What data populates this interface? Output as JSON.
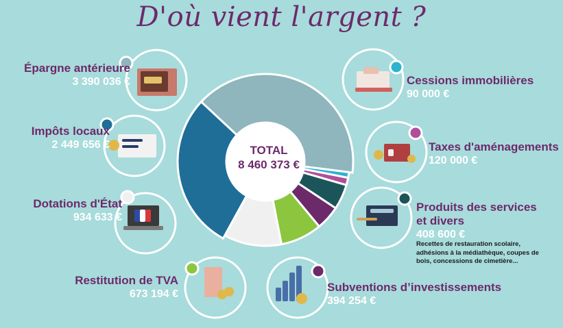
{
  "title": "D'où vient l'argent ?",
  "total": {
    "label": "TOTAL",
    "value": "8 460 373 €"
  },
  "items": [
    {
      "label": "Épargne antérieure",
      "value": "3 390 036 €",
      "icon": "safe-icon",
      "dot_color": "#8fb5bd"
    },
    {
      "label": "Impôts locaux",
      "value": "2 449 656 €",
      "icon": "tax-documents-icon",
      "dot_color": "#1e6e98"
    },
    {
      "label": "Dotations d'État",
      "value": "934 633 €",
      "icon": "laptop-flag-icon",
      "dot_color": "#f0f0f0"
    },
    {
      "label": "Restitution de TVA",
      "value": "673 194 €",
      "icon": "receipt-coins-icon",
      "dot_color": "#8cc63f"
    },
    {
      "label": "Subventions d’investissements",
      "value": "394 254 €",
      "icon": "growth-chart-icon",
      "dot_color": "#6c2a6b"
    },
    {
      "label": "Produits des services",
      "label2": "et divers",
      "value": "408 600 €",
      "icon": "calculator-icon",
      "dot_color": "#1c5559",
      "note": "Recettes de restauration scolaire, adhésions à la médiathèque, coupes de bois, concessions de cimetière..."
    },
    {
      "label": "Taxes d'aménagements",
      "value": "120 000 €",
      "icon": "house-coins-icon",
      "dot_color": "#b04e9a"
    },
    {
      "label": "Cessions immobilières",
      "value": "90 000 €",
      "icon": "cash-register-icon",
      "dot_color": "#2fb3d0"
    }
  ],
  "chart_data": {
    "type": "pie",
    "total": 8460373,
    "categories": [
      "Épargne antérieure",
      "Cessions immobilières",
      "Taxes d'aménagements",
      "Produits des services et divers",
      "Subventions d’investissements",
      "Restitution de TVA",
      "Dotations d'État",
      "Impôts locaux"
    ],
    "values": [
      3390036,
      90000,
      120000,
      408600,
      394254,
      673194,
      934633,
      2449656
    ],
    "colors": [
      "#8fb5bd",
      "#2fb3d0",
      "#b04e9a",
      "#1c5559",
      "#6c2a6b",
      "#8cc63f",
      "#f0f0f0",
      "#1e6e98"
    ]
  }
}
